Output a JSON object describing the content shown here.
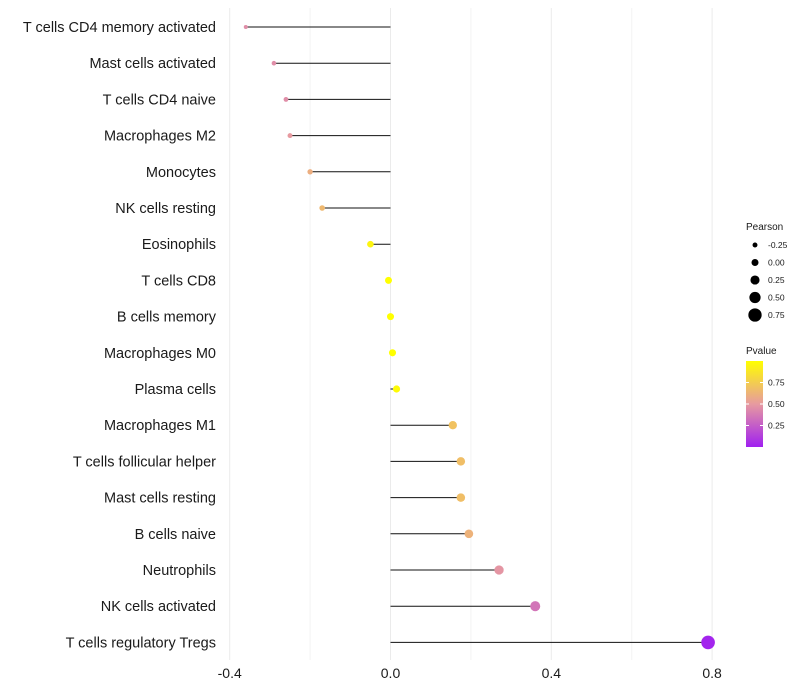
{
  "chart_data": {
    "type": "lollipop",
    "title": "",
    "xlabel": "",
    "ylabel": "",
    "xlim": [
      -0.45,
      0.83
    ],
    "x_ticks": [
      -0.4,
      0.0,
      0.4,
      0.8
    ],
    "x_tick_labels": [
      "-0.4",
      "0.0",
      "0.4",
      "0.8"
    ],
    "grid": true,
    "categories": [
      "T cells CD4 memory activated",
      "Mast cells activated",
      "T cells CD4 naive",
      "Macrophages M2",
      "Monocytes",
      "NK cells resting",
      "Eosinophils",
      "T cells CD8",
      "B cells memory",
      "Macrophages M0",
      "Plasma cells",
      "Macrophages M1",
      "T cells follicular helper",
      "Mast cells resting",
      "B cells naive",
      "Neutrophils",
      "NK cells activated",
      "T cells regulatory  Tregs"
    ],
    "pearson": [
      -0.36,
      -0.29,
      -0.26,
      -0.25,
      -0.2,
      -0.17,
      -0.05,
      -0.005,
      0.0,
      0.005,
      0.015,
      0.155,
      0.175,
      0.175,
      0.195,
      0.27,
      0.36,
      0.79
    ],
    "pvalue": [
      0.45,
      0.45,
      0.45,
      0.5,
      0.6,
      0.65,
      0.95,
      1.0,
      1.0,
      1.0,
      0.98,
      0.7,
      0.68,
      0.68,
      0.62,
      0.48,
      0.35,
      0.02
    ],
    "size_legend": {
      "title": "Pearson",
      "values": [
        -0.25,
        0.0,
        0.25,
        0.5,
        0.75
      ],
      "labels": [
        "-0.25",
        "0.00",
        "0.25",
        "0.50",
        "0.75"
      ]
    },
    "color_legend": {
      "title": "Pvalue",
      "labels": [
        "0.75",
        "0.50",
        "0.25"
      ],
      "values": [
        0.75,
        0.5,
        0.25
      ],
      "range": [
        0.0,
        1.0
      ],
      "colors": [
        "#a020f0",
        "#e79aa0",
        "#ffff00"
      ]
    }
  }
}
